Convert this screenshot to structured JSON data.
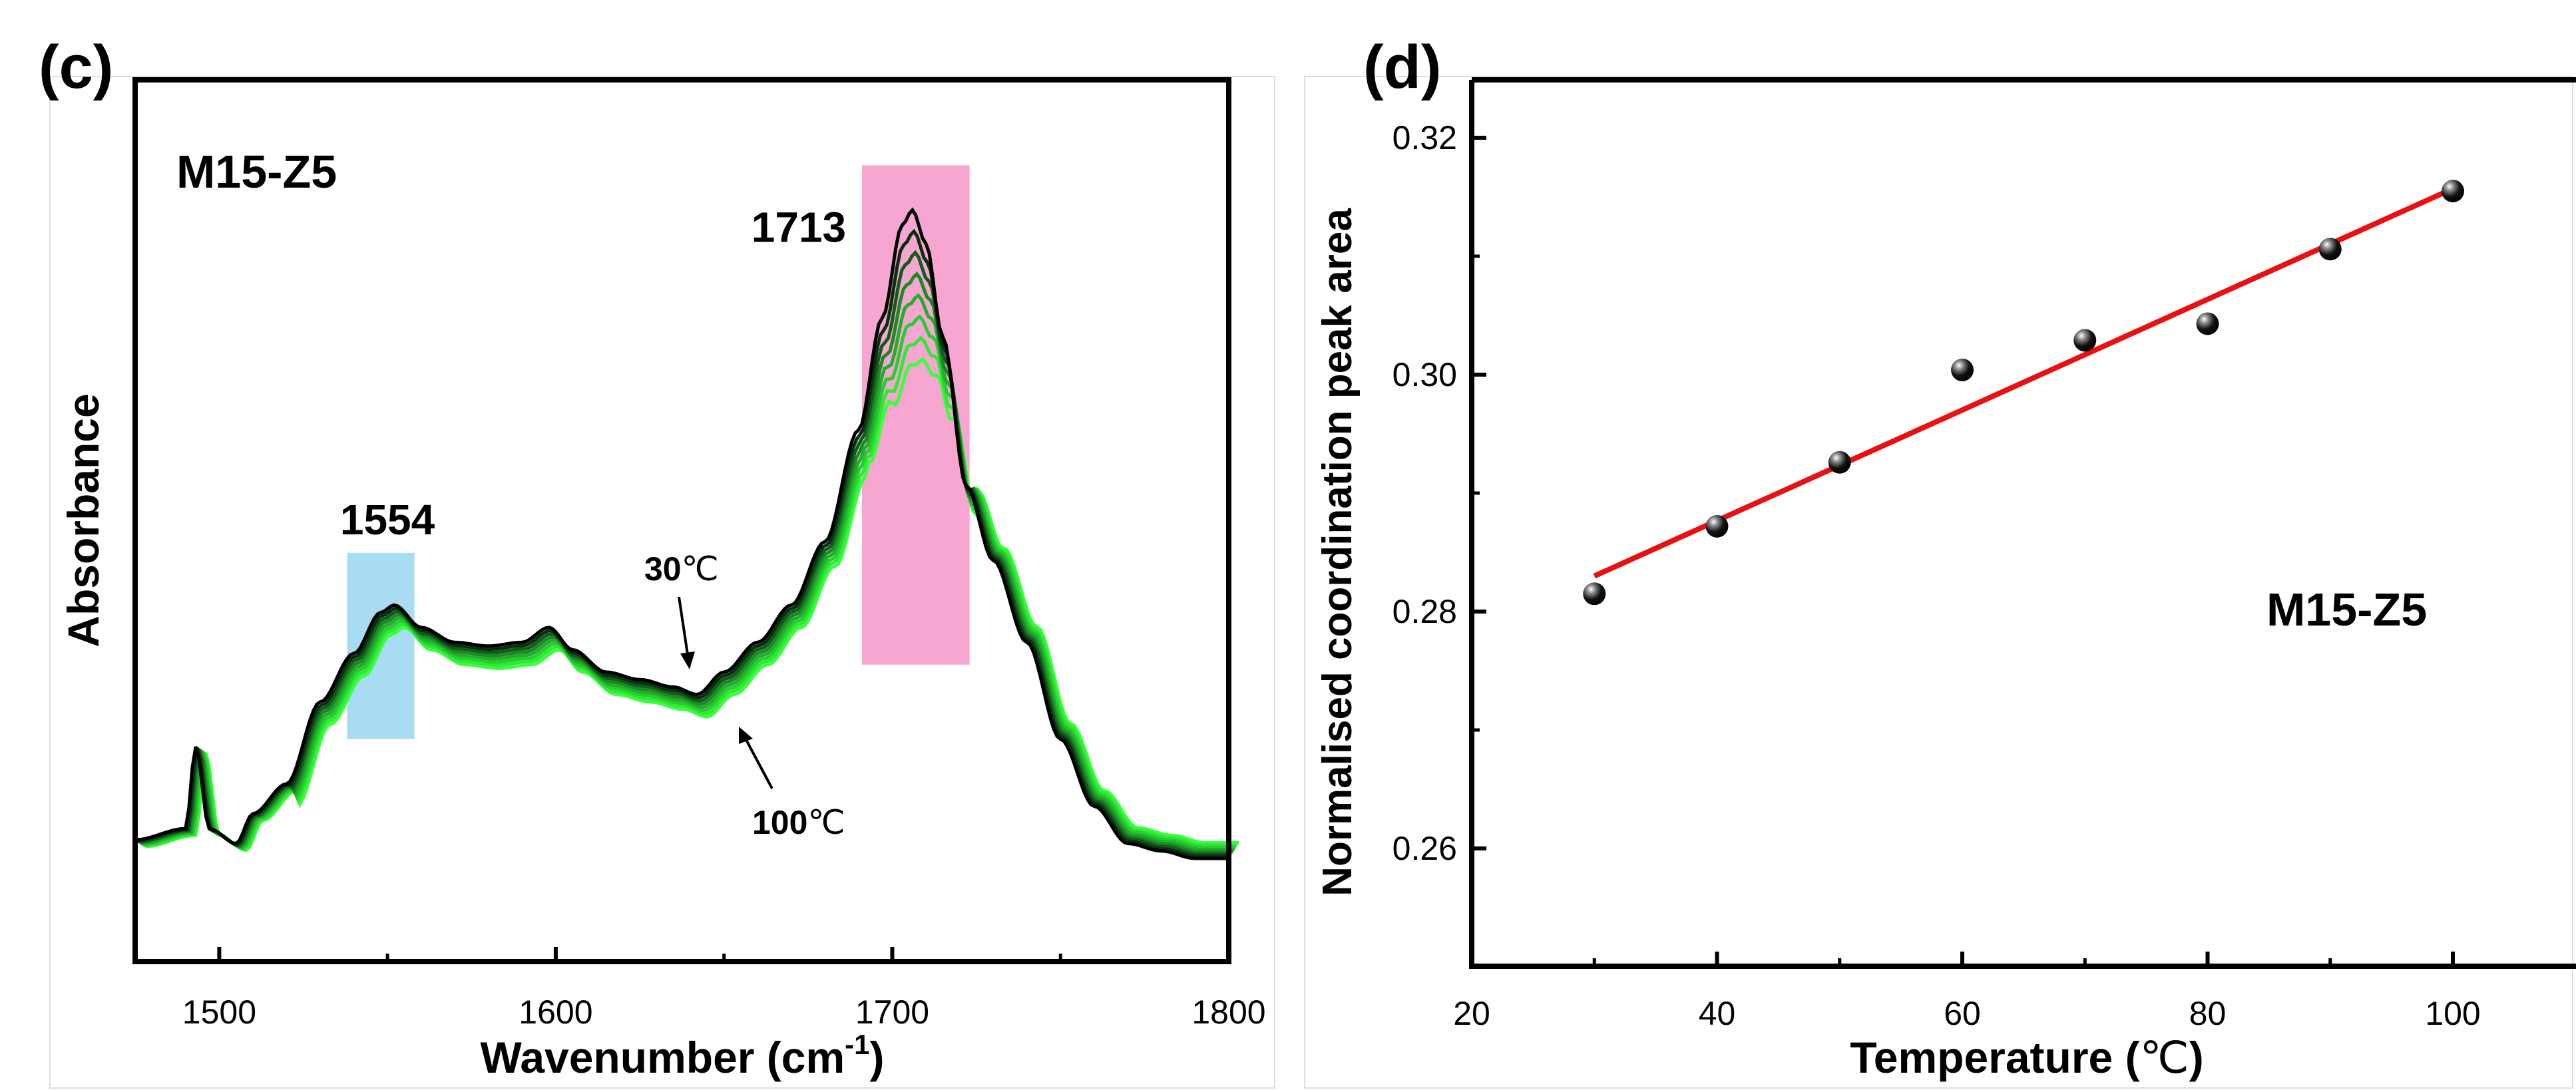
{
  "chart_data": [
    {
      "panel_label": "(c)",
      "type": "line",
      "annotation_sample": "M15-Z5",
      "xlabel_main": "Wavenumber (cm",
      "xlabel_sup": "-1",
      "xlabel_tail": ")",
      "ylabel": "Absorbance",
      "xlim": [
        1475,
        1800
      ],
      "xticks": [
        "1500",
        "1600",
        "1700",
        "1800"
      ],
      "peaks": [
        {
          "label": "1554",
          "x": 1554,
          "color": "#a8dcf2"
        },
        {
          "label": "1713",
          "x": 1713,
          "color": "#f7a6d2"
        }
      ],
      "temp_labels": {
        "low_num": "30",
        "high_num": "100",
        "unit": "℃"
      },
      "series_colors": [
        "#000000",
        "#0a2e10",
        "#125b1a",
        "#1b8a24",
        "#22ad2b",
        "#26cc30",
        "#2eea34",
        "#39ff3d"
      ],
      "curve_x": [
        1475,
        1490,
        1493,
        1497,
        1505,
        1510,
        1520,
        1530,
        1540,
        1548,
        1552,
        1560,
        1570,
        1580,
        1590,
        1598,
        1605,
        1615,
        1625,
        1635,
        1642,
        1650,
        1660,
        1670,
        1680,
        1690,
        1697,
        1703,
        1706,
        1710,
        1715,
        1722,
        1730,
        1740,
        1750,
        1760,
        1770,
        1780,
        1790,
        1800
      ],
      "curve_y": [
        0.05,
        0.08,
        0.3,
        0.08,
        0.04,
        0.12,
        0.2,
        0.42,
        0.55,
        0.66,
        0.68,
        0.62,
        0.58,
        0.57,
        0.58,
        0.62,
        0.56,
        0.5,
        0.48,
        0.46,
        0.44,
        0.5,
        0.58,
        0.68,
        0.85,
        1.15,
        1.45,
        1.7,
        1.74,
        1.65,
        1.4,
        1.0,
        0.8,
        0.58,
        0.32,
        0.14,
        0.04,
        0.02,
        0.0,
        0.0
      ]
    },
    {
      "panel_label": "(d)",
      "type": "scatter",
      "annotation_sample": "M15-Z5",
      "xlabel_main": "Temperature (",
      "xlabel_unit": "℃",
      "xlabel_tail": ")",
      "ylabel": "Normalised coordination peak area",
      "xlim": [
        20,
        110
      ],
      "ylim": [
        0.25,
        0.325
      ],
      "xticks": [
        "20",
        "40",
        "60",
        "80",
        "100"
      ],
      "yticks": [
        "0.26",
        "0.28",
        "0.30",
        "0.32"
      ],
      "x": [
        30,
        40,
        50,
        60,
        70,
        80,
        90,
        100
      ],
      "y": [
        0.2815,
        0.2872,
        0.2926,
        0.3004,
        0.3029,
        0.3043,
        0.3106,
        0.3155
      ],
      "fit": {
        "x": [
          30,
          100
        ],
        "y": [
          0.283,
          0.3157
        ],
        "color": "#e81010"
      }
    }
  ]
}
